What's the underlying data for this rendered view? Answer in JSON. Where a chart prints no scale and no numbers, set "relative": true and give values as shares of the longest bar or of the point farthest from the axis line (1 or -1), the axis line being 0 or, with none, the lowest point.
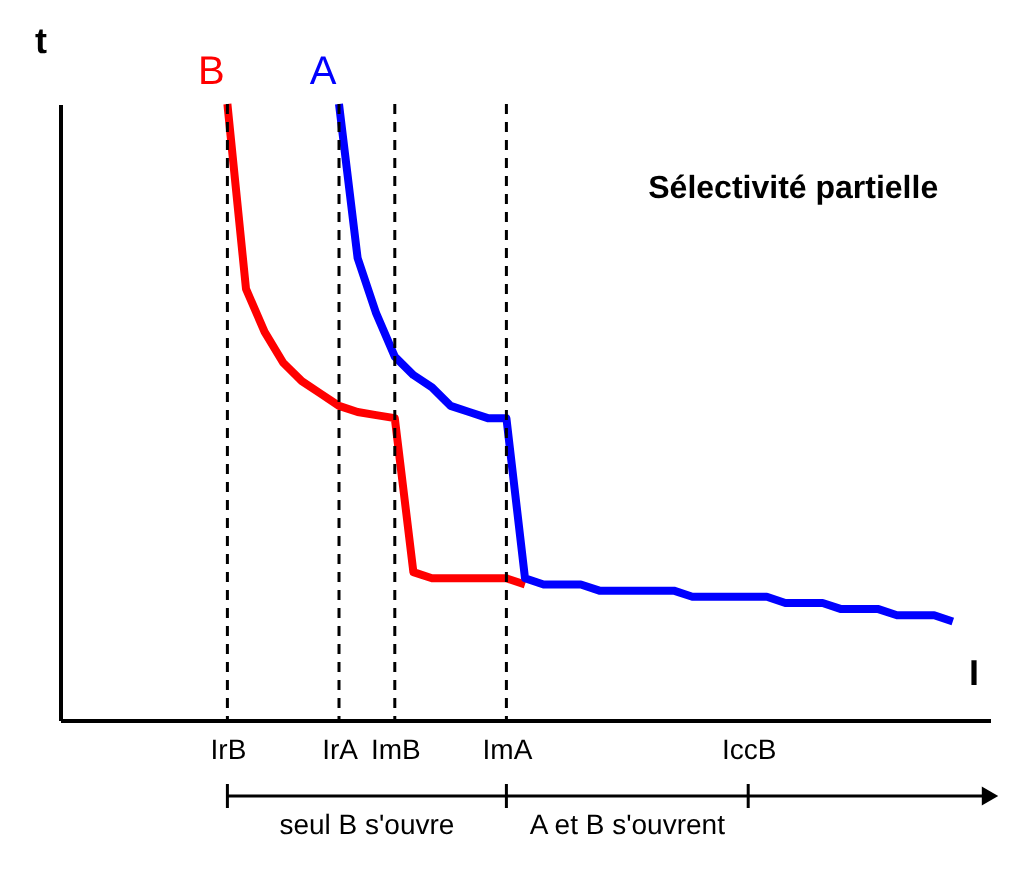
{
  "chart_data": {
    "type": "line",
    "title": "Sélectivité partielle",
    "xlabel": "I",
    "ylabel": "t",
    "relative": true,
    "legend": false,
    "categories": [
      null,
      null,
      null,
      null,
      null,
      null,
      null,
      null,
      null,
      "IrB",
      null,
      null,
      null,
      null,
      null,
      "IrA",
      null,
      null,
      "ImB",
      null,
      null,
      null,
      null,
      null,
      "ImA",
      null,
      null,
      null,
      null,
      null,
      null,
      null,
      null,
      null,
      null,
      null,
      null,
      "IccB",
      null,
      null,
      null,
      null,
      null,
      null,
      null,
      null,
      null,
      null,
      null,
      null,
      null
    ],
    "series": [
      {
        "name": "B",
        "color": "#ff0000",
        "values": [
          null,
          null,
          null,
          null,
          null,
          null,
          null,
          null,
          null,
          1.0,
          0.7,
          0.63,
          0.58,
          0.55,
          0.53,
          0.51,
          0.5,
          0.495,
          0.49,
          0.24,
          0.23,
          0.23,
          0.23,
          0.23,
          0.23,
          0.22,
          null,
          null,
          null,
          null,
          null,
          null,
          null,
          null,
          null,
          null,
          null,
          null,
          null,
          null,
          null,
          null,
          null,
          null,
          null,
          null,
          null,
          null,
          null,
          null,
          null
        ]
      },
      {
        "name": "A",
        "color": "#0000ff",
        "values": [
          null,
          null,
          null,
          null,
          null,
          null,
          null,
          null,
          null,
          null,
          null,
          null,
          null,
          null,
          null,
          1.0,
          0.75,
          0.66,
          0.59,
          0.56,
          0.54,
          0.51,
          0.5,
          0.49,
          0.49,
          0.23,
          0.22,
          0.22,
          0.22,
          0.21,
          0.21,
          0.21,
          0.21,
          0.21,
          0.2,
          0.2,
          0.2,
          0.2,
          0.2,
          0.19,
          0.19,
          0.19,
          0.18,
          0.18,
          0.18,
          0.17,
          0.17,
          0.17,
          0.16,
          null,
          null
        ]
      }
    ],
    "ref_lines": [
      {
        "axis": "x",
        "value": "IrB",
        "line_style": "dashed"
      },
      {
        "axis": "x",
        "value": "IrA",
        "line_style": "dashed"
      },
      {
        "axis": "x",
        "value": "ImB",
        "line_style": "dashed"
      },
      {
        "axis": "x",
        "value": "ImA",
        "line_style": "dashed"
      }
    ],
    "annotations": [
      "seul B s'ouvre",
      "A et B s'ouvrent"
    ]
  }
}
